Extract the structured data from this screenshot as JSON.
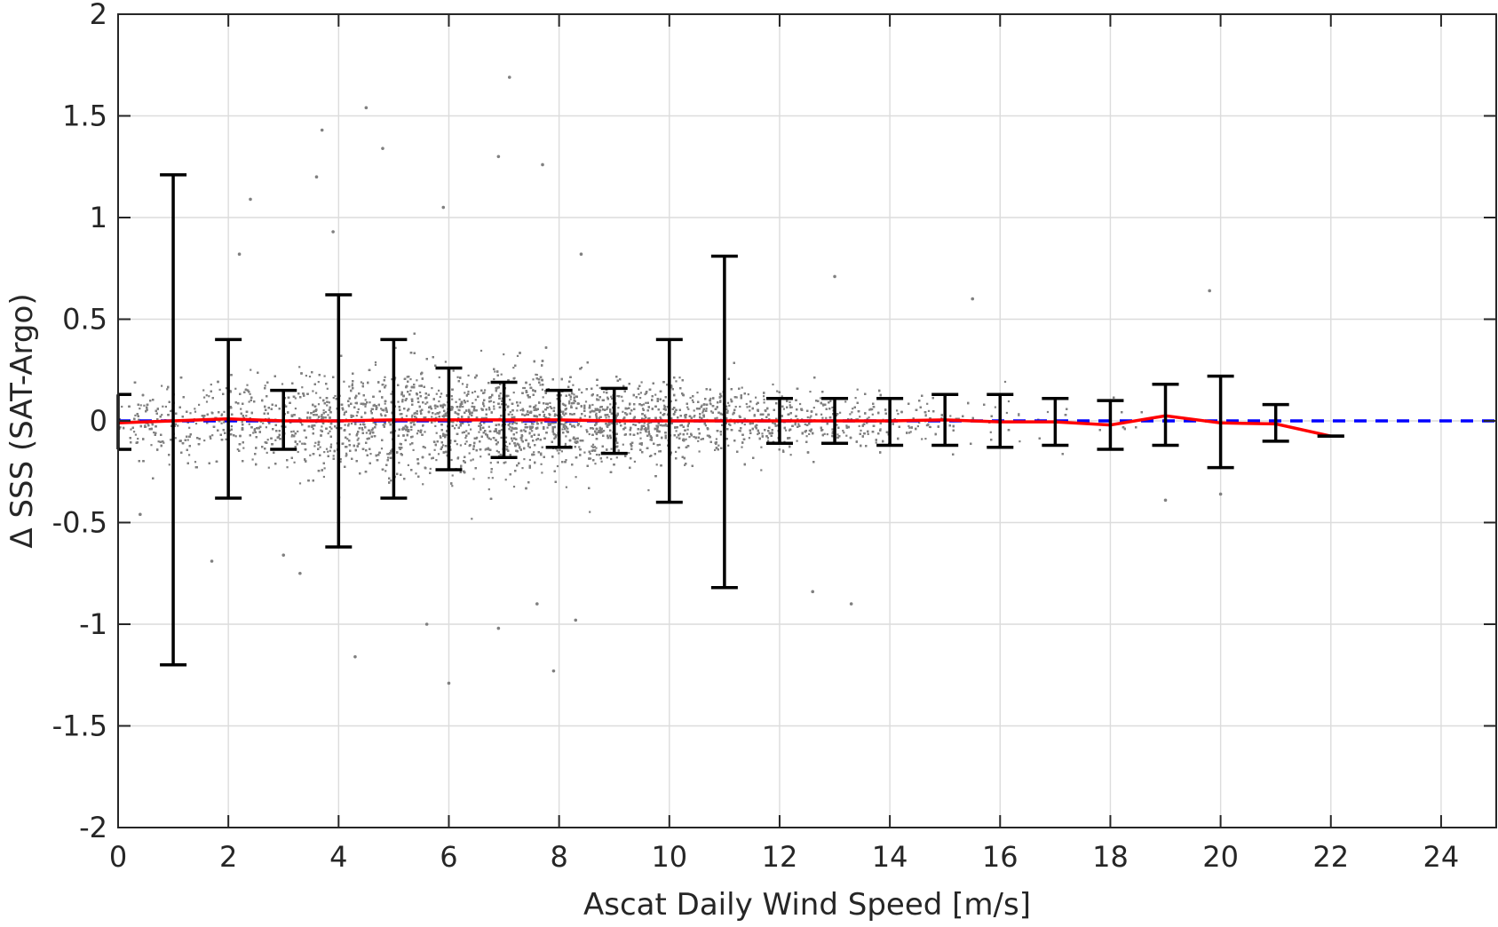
{
  "chart_data": {
    "type": "scatter",
    "title": "",
    "xlabel": "Ascat Daily Wind Speed [m/s]",
    "ylabel": "Δ SSS (SAT-Argo)",
    "xlim": [
      0,
      25
    ],
    "ylim": [
      -2,
      2
    ],
    "x_ticks": [
      0,
      2,
      4,
      6,
      8,
      10,
      12,
      14,
      16,
      18,
      20,
      22,
      24
    ],
    "y_ticks": [
      2,
      1.5,
      1,
      0.5,
      0,
      -0.5,
      -1,
      -1.5,
      -2
    ],
    "x_tick_labels": [
      "0",
      "2",
      "4",
      "6",
      "8",
      "10",
      "12",
      "14",
      "16",
      "18",
      "20",
      "22",
      "24"
    ],
    "y_tick_labels": [
      "2",
      "1.5",
      "1",
      "0.5",
      "0",
      "-0.5",
      "-1",
      "-1.5",
      "-2"
    ],
    "grid": true,
    "legend": "none",
    "colors": {
      "scatter": "#808080",
      "error_bars": "#000000",
      "mean_line": "#ff0000",
      "zero_line": "#0000ff"
    },
    "series": [
      {
        "kind": "scatter-cloud",
        "color": "#808080",
        "x_range": [
          0,
          22
        ],
        "outliers": [
          {
            "x": 7.1,
            "y": 1.69
          },
          {
            "x": 4.5,
            "y": 1.54
          },
          {
            "x": 3.7,
            "y": 1.43
          },
          {
            "x": 4.8,
            "y": 1.34
          },
          {
            "x": 6.9,
            "y": 1.3
          },
          {
            "x": 7.7,
            "y": 1.26
          },
          {
            "x": 3.6,
            "y": 1.2
          },
          {
            "x": 2.4,
            "y": 1.09
          },
          {
            "x": 5.9,
            "y": 1.05
          },
          {
            "x": 3.9,
            "y": 0.93
          },
          {
            "x": 2.2,
            "y": 0.82
          },
          {
            "x": 8.4,
            "y": 0.82
          },
          {
            "x": 13.0,
            "y": 0.71
          },
          {
            "x": 19.8,
            "y": 0.64
          },
          {
            "x": 15.5,
            "y": 0.6
          },
          {
            "x": 3.0,
            "y": -0.66
          },
          {
            "x": 3.3,
            "y": -0.75
          },
          {
            "x": 5.6,
            "y": -1.0
          },
          {
            "x": 6.0,
            "y": -1.29
          },
          {
            "x": 4.3,
            "y": -1.16
          },
          {
            "x": 7.6,
            "y": -0.9
          },
          {
            "x": 7.9,
            "y": -1.23
          },
          {
            "x": 8.3,
            "y": -0.98
          },
          {
            "x": 6.9,
            "y": -1.02
          },
          {
            "x": 12.6,
            "y": -0.84
          },
          {
            "x": 13.3,
            "y": -0.9
          },
          {
            "x": 1.7,
            "y": -0.69
          },
          {
            "x": 0.4,
            "y": -0.46
          },
          {
            "x": 19.0,
            "y": -0.39
          },
          {
            "x": 20.0,
            "y": -0.36
          }
        ]
      },
      {
        "kind": "errorbar",
        "color": "#000000",
        "x": [
          0,
          1,
          2,
          3,
          4,
          5,
          6,
          7,
          8,
          9,
          10,
          11,
          12,
          13,
          14,
          15,
          16,
          17,
          18,
          19,
          20,
          21,
          22
        ],
        "mean": [
          -0.01,
          0.0,
          0.01,
          0.0,
          0.0,
          0.005,
          0.005,
          0.005,
          0.005,
          0.0,
          0.0,
          0.0,
          0.0,
          0.0,
          0.0,
          0.005,
          -0.005,
          -0.005,
          -0.02,
          0.025,
          -0.01,
          -0.015,
          -0.075
        ],
        "upper": [
          0.13,
          1.21,
          0.4,
          0.15,
          0.62,
          0.4,
          0.26,
          0.19,
          0.15,
          0.16,
          0.4,
          0.81,
          0.11,
          0.11,
          0.11,
          0.13,
          0.13,
          0.11,
          0.1,
          0.18,
          0.22,
          0.08,
          -0.075
        ],
        "lower": [
          -0.14,
          -1.2,
          -0.38,
          -0.14,
          -0.62,
          -0.38,
          -0.24,
          -0.18,
          -0.13,
          -0.16,
          -0.4,
          -0.82,
          -0.11,
          -0.11,
          -0.12,
          -0.12,
          -0.13,
          -0.12,
          -0.14,
          -0.12,
          -0.23,
          -0.1,
          -0.075
        ]
      },
      {
        "kind": "reference-line",
        "color": "#0000ff",
        "style": "dashed",
        "y": 0
      }
    ]
  }
}
